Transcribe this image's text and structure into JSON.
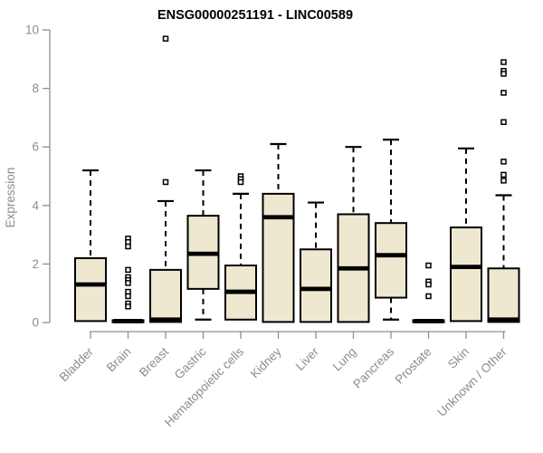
{
  "colors": {
    "background": "#ffffff",
    "box_fill": "#EDE8CF",
    "box_stroke": "#000000",
    "median": "#000000",
    "whisker": "#000000",
    "outlier_fill": "#ffffff",
    "outlier_stroke": "#000000",
    "axis": "#8f8f8f",
    "tick_text": "#8c8c8c",
    "title_text": "#000000"
  },
  "chart_data": {
    "type": "boxplot",
    "title": "ENSG00000251191 - LINC00589",
    "xlabel": "",
    "ylabel": "Expression",
    "ylim": [
      0,
      10
    ],
    "yticks": [
      0,
      2,
      4,
      6,
      8,
      10
    ],
    "grid": false,
    "legend": "none",
    "categories": [
      "Bladder",
      "Brain",
      "Breast",
      "Gastric",
      "Hematopoietic cells",
      "Kidney",
      "Liver",
      "Lung",
      "Pancreas",
      "Prostate",
      "Skin",
      "Unknown / Other"
    ],
    "boxes": [
      {
        "category": "Bladder",
        "low": 0.05,
        "q1": 0.05,
        "median": 1.3,
        "q3": 2.2,
        "high": 5.2,
        "outliers": []
      },
      {
        "category": "Brain",
        "low": 0,
        "q1": 0.01,
        "median": 0.05,
        "q3": 0.08,
        "high": 0.1,
        "outliers": [
          2.87,
          2.75,
          2.6,
          1.8,
          1.55,
          1.45,
          1.35,
          1.05,
          0.9,
          0.65,
          0.55
        ]
      },
      {
        "category": "Breast",
        "low": 0.02,
        "q1": 0.02,
        "median": 0.1,
        "q3": 1.8,
        "high": 4.15,
        "outliers": [
          9.7,
          4.8
        ]
      },
      {
        "category": "Gastric",
        "low": 0.1,
        "q1": 1.15,
        "median": 2.35,
        "q3": 3.65,
        "high": 5.2,
        "outliers": []
      },
      {
        "category": "Hematopoietic cells",
        "low": 0.1,
        "q1": 0.1,
        "median": 1.05,
        "q3": 1.95,
        "high": 4.4,
        "outliers": [
          5.0,
          4.9,
          4.8
        ]
      },
      {
        "category": "Kidney",
        "low": 0.02,
        "q1": 0.02,
        "median": 3.6,
        "q3": 4.4,
        "high": 6.1,
        "outliers": []
      },
      {
        "category": "Liver",
        "low": 0.02,
        "q1": 0.02,
        "median": 1.15,
        "q3": 2.5,
        "high": 4.1,
        "outliers": []
      },
      {
        "category": "Lung",
        "low": 0.02,
        "q1": 0.02,
        "median": 1.85,
        "q3": 3.7,
        "high": 6.0,
        "outliers": []
      },
      {
        "category": "Pancreas",
        "low": 0.1,
        "q1": 0.85,
        "median": 2.3,
        "q3": 3.4,
        "high": 6.25,
        "outliers": []
      },
      {
        "category": "Prostate",
        "low": 0,
        "q1": 0.01,
        "median": 0.05,
        "q3": 0.08,
        "high": 0.1,
        "outliers": [
          1.95,
          1.4,
          1.3,
          0.9
        ]
      },
      {
        "category": "Skin",
        "low": 0.05,
        "q1": 0.05,
        "median": 1.9,
        "q3": 3.25,
        "high": 5.95,
        "outliers": []
      },
      {
        "category": "Unknown / Other",
        "low": 0.02,
        "q1": 0.02,
        "median": 0.1,
        "q3": 1.85,
        "high": 4.35,
        "outliers": [
          8.9,
          8.6,
          8.5,
          7.85,
          6.85,
          5.5,
          5.05,
          4.85
        ]
      }
    ]
  }
}
